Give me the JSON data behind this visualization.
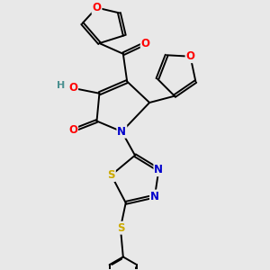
{
  "bg_color": "#e8e8e8",
  "bond_color": "#000000",
  "bond_width": 1.4,
  "dbo": 0.055,
  "atom_colors": {
    "O": "#ff0000",
    "N": "#0000cc",
    "S": "#ccaa00",
    "C": "#000000",
    "H": "#4a9090"
  },
  "fs": 8.5
}
